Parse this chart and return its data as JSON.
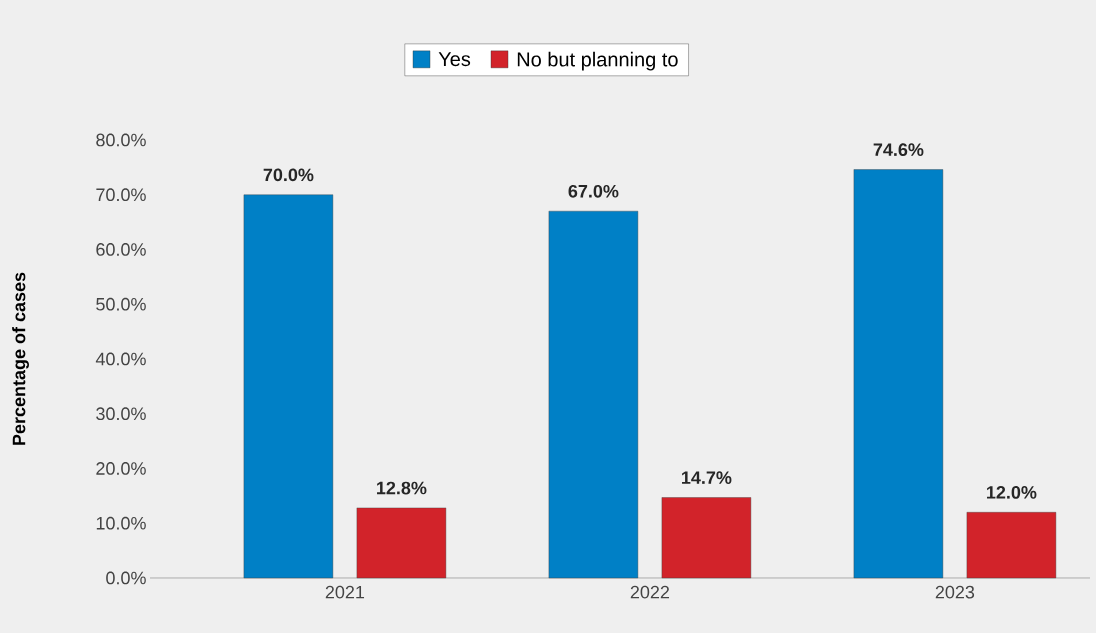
{
  "chart_data": {
    "type": "bar",
    "ylabel": "Percentage of cases",
    "categories": [
      "2021",
      "2022",
      "2023"
    ],
    "series": [
      {
        "name": "Yes",
        "color": "#0080c6",
        "values": [
          70.0,
          67.0,
          74.6
        ],
        "value_labels": [
          "70.0%",
          "67.0%",
          "74.6%"
        ]
      },
      {
        "name": "No but planning to",
        "color": "#d2232a",
        "values": [
          12.8,
          14.7,
          12.0
        ],
        "value_labels": [
          "12.8%",
          "14.7%",
          "12.0%"
        ]
      }
    ],
    "ylim": [
      0,
      80
    ],
    "yticks": [
      {
        "value": 0,
        "label": "0.0%"
      },
      {
        "value": 10,
        "label": "10.0%"
      },
      {
        "value": 20,
        "label": "20.0%"
      },
      {
        "value": 30,
        "label": "30.0%"
      },
      {
        "value": 40,
        "label": "40.0%"
      },
      {
        "value": 50,
        "label": "50.0%"
      },
      {
        "value": 60,
        "label": "60.0%"
      },
      {
        "value": 70,
        "label": "70.0%"
      },
      {
        "value": 80,
        "label": "80.0%"
      }
    ],
    "legend": "top"
  }
}
